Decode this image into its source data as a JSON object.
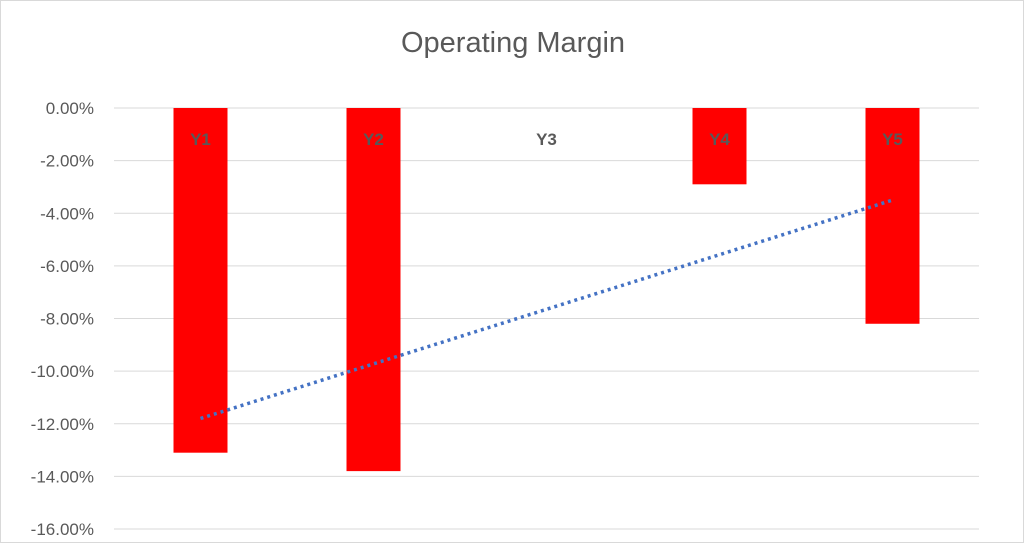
{
  "chart_data": {
    "type": "bar",
    "title": "Operating Margin",
    "xlabel": "",
    "ylabel": "",
    "categories": [
      "Y1",
      "Y2",
      "Y3",
      "Y4",
      "Y5"
    ],
    "values": [
      -13.1,
      -13.8,
      0.0,
      -2.9,
      -8.2
    ],
    "value_format": "percent_2dp",
    "ylim": [
      -16,
      0
    ],
    "ytick_step": 2,
    "yticks": [
      "0.00%",
      "-2.00%",
      "-4.00%",
      "-6.00%",
      "-8.00%",
      "-10.00%",
      "-12.00%",
      "-14.00%",
      "-16.00%"
    ],
    "grid": true,
    "legend": "none",
    "category_labels_position": "top",
    "trendline": {
      "type": "linear",
      "style": "dotted",
      "start": -11.8,
      "end": -3.5
    },
    "colors": {
      "bar": "#ff0000",
      "trendline": "#4472c4",
      "grid": "#d9d9d9",
      "text": "#595959"
    }
  }
}
